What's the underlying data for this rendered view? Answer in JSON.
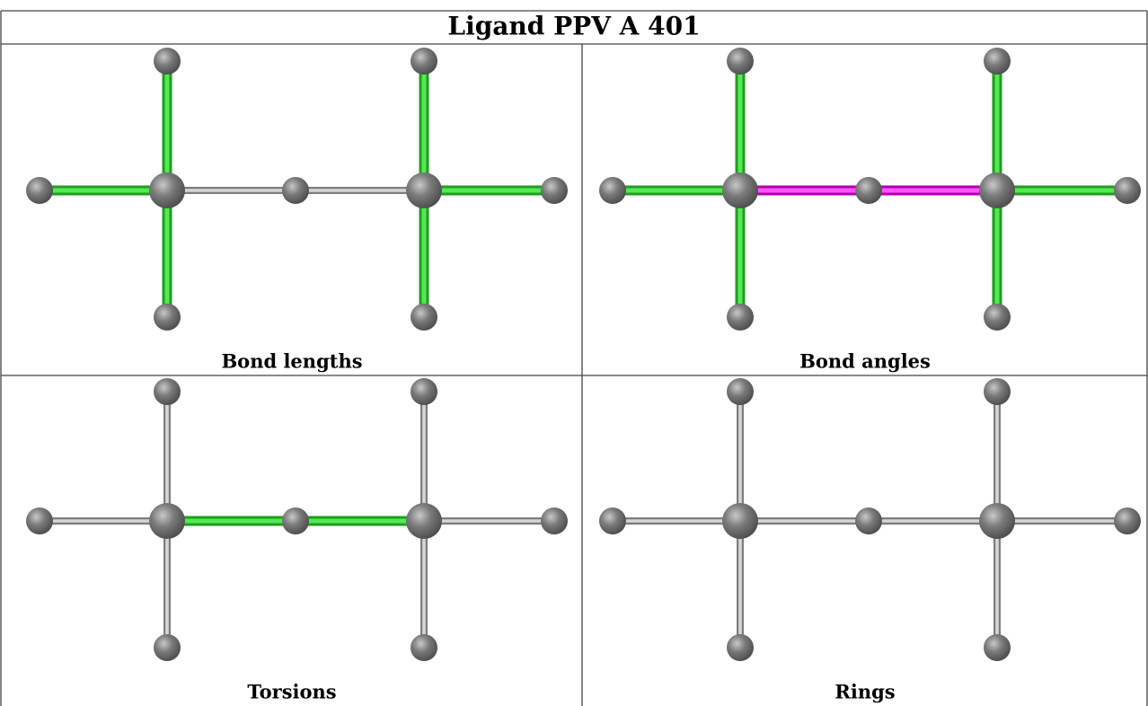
{
  "header": {
    "title": "Ligand PPV A 401"
  },
  "panels": [
    {
      "caption": "Bond lengths"
    },
    {
      "caption": "Bond angles"
    },
    {
      "caption": "Torsions"
    },
    {
      "caption": "Rings"
    }
  ]
}
